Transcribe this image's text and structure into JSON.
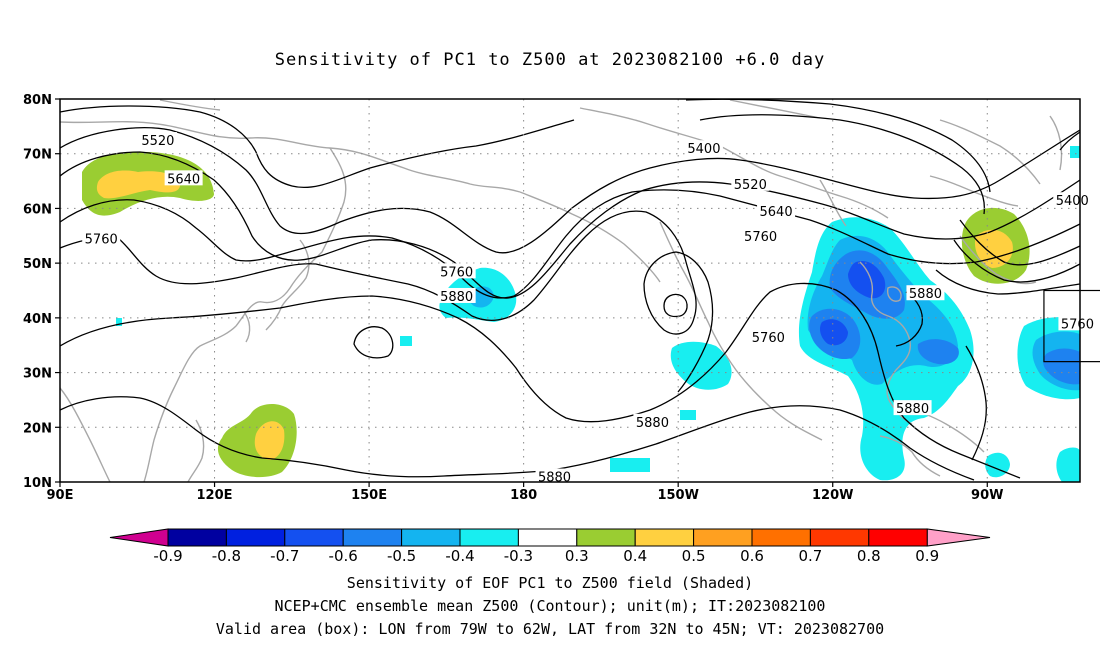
{
  "title": "Sensitivity of PC1 to Z500 at 2023082100 +6.0 day",
  "map": {
    "lon_range": [
      90,
      288
    ],
    "lat_range": [
      10,
      80
    ],
    "lat_ticks": [
      {
        "value": 80,
        "label": "80N"
      },
      {
        "value": 70,
        "label": "70N"
      },
      {
        "value": 60,
        "label": "60N"
      },
      {
        "value": 50,
        "label": "50N"
      },
      {
        "value": 40,
        "label": "40N"
      },
      {
        "value": 30,
        "label": "30N"
      },
      {
        "value": 20,
        "label": "20N"
      },
      {
        "value": 10,
        "label": "10N"
      }
    ],
    "lon_ticks": [
      {
        "value": 90,
        "label": "90E"
      },
      {
        "value": 120,
        "label": "120E"
      },
      {
        "value": 150,
        "label": "150E"
      },
      {
        "value": 180,
        "label": "180"
      },
      {
        "value": 210,
        "label": "150W"
      },
      {
        "value": 240,
        "label": "120W"
      },
      {
        "value": 270,
        "label": "90W"
      },
      {
        "value": 300,
        "label": "60W"
      }
    ],
    "valid_box": {
      "lon_min": 281,
      "lon_max": 298,
      "lat_min": 32,
      "lat_max": 45
    },
    "contour_labels": [
      {
        "text": "5520",
        "lon": 109,
        "lat": 72.5
      },
      {
        "text": "5640",
        "lon": 114,
        "lat": 65.5
      },
      {
        "text": "5760",
        "lon": 98,
        "lat": 54.5
      },
      {
        "text": "5400",
        "lon": 215,
        "lat": 71
      },
      {
        "text": "5520",
        "lon": 224,
        "lat": 64.5
      },
      {
        "text": "5640",
        "lon": 229,
        "lat": 59.5
      },
      {
        "text": "5760",
        "lon": 226,
        "lat": 55
      },
      {
        "text": "5760",
        "lon": 167,
        "lat": 48.5
      },
      {
        "text": "5880",
        "lon": 167,
        "lat": 44
      },
      {
        "text": "5760",
        "lon": 227.5,
        "lat": 36.5
      },
      {
        "text": "5880",
        "lon": 258,
        "lat": 44.5
      },
      {
        "text": "5760",
        "lon": 287.5,
        "lat": 39
      },
      {
        "text": "5400",
        "lon": 286.5,
        "lat": 61.5
      },
      {
        "text": "5880",
        "lon": 205,
        "lat": 21
      },
      {
        "text": "5880",
        "lon": 255.5,
        "lat": 23.5
      },
      {
        "text": "5880",
        "lon": 186,
        "lat": 11
      }
    ]
  },
  "colorbar": {
    "labels": [
      "-0.9",
      "-0.8",
      "-0.7",
      "-0.6",
      "-0.5",
      "-0.4",
      "-0.3",
      "0.3",
      "0.4",
      "0.5",
      "0.6",
      "0.7",
      "0.8",
      "0.9"
    ],
    "colors": [
      "#0000a0",
      "#0020e0",
      "#1450f0",
      "#1e82f0",
      "#14b4f0",
      "#18eef0",
      "#ffffff",
      "#9acd32",
      "#ffd040",
      "#ffa020",
      "#ff7000",
      "#ff3800",
      "#ff0000"
    ],
    "low_extend_color": "#d00090",
    "high_extend_color": "#ffa0c8"
  },
  "captions": {
    "line1": "Sensitivity of EOF PC1 to Z500 field (Shaded)",
    "line2": "NCEP+CMC ensemble mean Z500 (Contour); unit(m); IT:2023082100",
    "line3": "Valid area (box): LON from 79W to 62W, LAT from 32N to 45N; VT: 2023082700"
  }
}
